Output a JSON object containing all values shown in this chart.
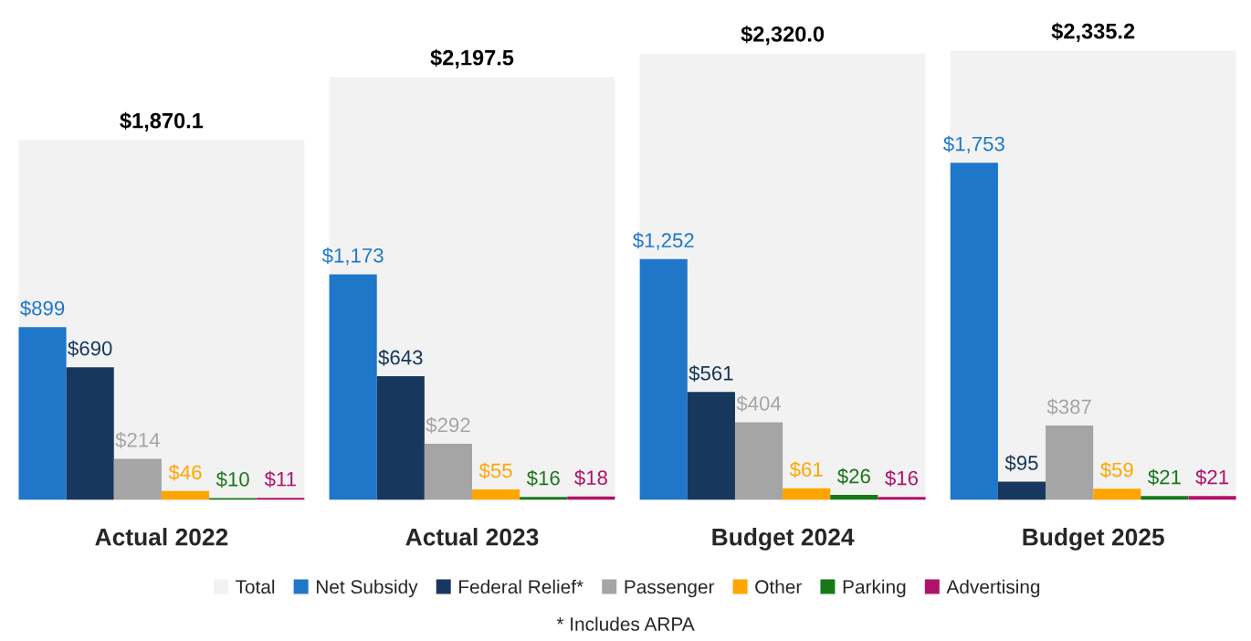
{
  "chart_data": {
    "type": "bar",
    "categories": [
      "Actual 2022",
      "Actual 2023",
      "Budget 2024",
      "Budget 2025"
    ],
    "series": [
      {
        "name": "Total",
        "color": "#f2f2f2",
        "values": [
          1870.1,
          2197.5,
          2320.0,
          2335.2
        ],
        "value_labels": [
          "$1,870.1",
          "$2,197.5",
          "$2,320.0",
          "$2,335.2"
        ]
      },
      {
        "name": "Net Subsidy",
        "color": "#1f77c9",
        "values": [
          899,
          1173,
          1252,
          1753
        ],
        "value_labels": [
          "$899",
          "$1,173",
          "$1,252",
          "$1,753"
        ]
      },
      {
        "name": "Federal Relief*",
        "color": "#17375e",
        "values": [
          690,
          643,
          561,
          95
        ],
        "value_labels": [
          "$690",
          "$643",
          "$561",
          "$95"
        ]
      },
      {
        "name": "Passenger",
        "color": "#a5a5a5",
        "values": [
          214,
          292,
          404,
          387
        ],
        "value_labels": [
          "$214",
          "$292",
          "$404",
          "$387"
        ]
      },
      {
        "name": "Other",
        "color": "#ffa500",
        "values": [
          46,
          55,
          61,
          59
        ],
        "value_labels": [
          "$46",
          "$55",
          "$61",
          "$59"
        ]
      },
      {
        "name": "Parking",
        "color": "#187818",
        "values": [
          10,
          16,
          26,
          21
        ],
        "value_labels": [
          "$10",
          "$16",
          "$26",
          "$21"
        ]
      },
      {
        "name": "Advertising",
        "color": "#b0126a",
        "values": [
          11,
          18,
          16,
          21
        ],
        "value_labels": [
          "$11",
          "$18",
          "$16",
          "$21"
        ]
      }
    ],
    "legend": "bottom",
    "grid": false,
    "annotations": [
      "* Includes ARPA"
    ]
  }
}
